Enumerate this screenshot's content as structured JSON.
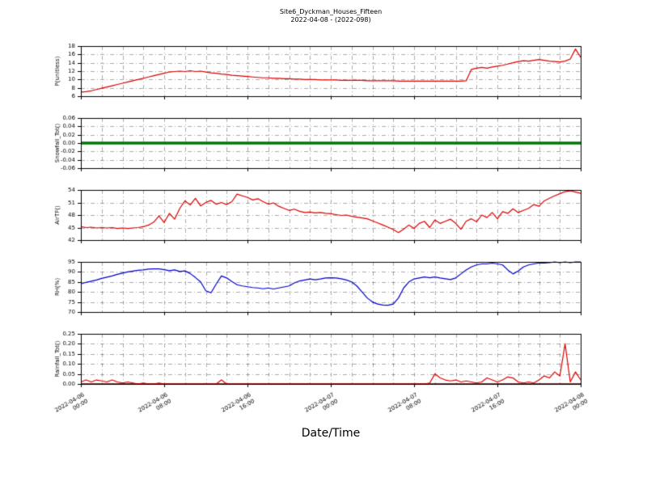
{
  "title": {
    "line1": "Site6_Dyckman_Houses_Fifteen",
    "line2": "2022-04-08 - (2022-098)"
  },
  "xlabel": "Date/Time",
  "chart_data": {
    "type": "line",
    "x_unit": "hours since 2022-04-06 00:00",
    "xlim": [
      0,
      48
    ],
    "x_minor_step": 2,
    "x_major_ticks": [
      0,
      8,
      16,
      24,
      32,
      40,
      48
    ],
    "x_tick_labels": [
      [
        "2022-04-06",
        "00:00"
      ],
      [
        "2022-04-06",
        "08:00"
      ],
      [
        "2022-04-06",
        "16:00"
      ],
      [
        "2022-04-07",
        "00:00"
      ],
      [
        "2022-04-07",
        "08:00"
      ],
      [
        "2022-04-07",
        "16:00"
      ],
      [
        "2022-04-08",
        "00:00"
      ]
    ],
    "grid": true,
    "panels": [
      {
        "ylabel": "P(unitless)",
        "ylim": [
          6,
          18
        ],
        "yticks": [
          6,
          8,
          10,
          12,
          14,
          16,
          18
        ],
        "ytick_decimals": 0,
        "series": [
          {
            "name": "P",
            "color": "#dd0000",
            "lw": 1.2,
            "x_start": 0,
            "x_step": 0.5,
            "values": [
              7.0,
              7.1,
              7.3,
              7.6,
              7.9,
              8.2,
              8.5,
              8.8,
              9.1,
              9.4,
              9.7,
              10.0,
              10.3,
              10.6,
              10.9,
              11.2,
              11.5,
              11.8,
              11.9,
              12.0,
              11.9,
              12.1,
              11.9,
              12.0,
              11.8,
              11.6,
              11.5,
              11.3,
              11.2,
              11.0,
              10.9,
              10.8,
              10.7,
              10.6,
              10.5,
              10.4,
              10.4,
              10.3,
              10.3,
              10.2,
              10.2,
              10.1,
              10.1,
              10.0,
              10.0,
              10.0,
              9.9,
              9.9,
              9.9,
              9.9,
              9.8,
              9.8,
              9.8,
              9.8,
              9.8,
              9.7,
              9.7,
              9.7,
              9.7,
              9.7,
              9.7,
              9.6,
              9.6,
              9.6,
              9.6,
              9.6,
              9.6,
              9.6,
              9.6,
              9.6,
              9.6,
              9.6,
              9.6,
              9.6,
              9.7,
              12.4,
              12.7,
              12.9,
              12.7,
              13.0,
              13.2,
              13.4,
              13.7,
              14.0,
              14.3,
              14.5,
              14.4,
              14.6,
              14.8,
              14.6,
              14.4,
              14.3,
              14.2,
              14.4,
              14.9,
              17.3,
              15.3
            ]
          }
        ]
      },
      {
        "ylabel": "Snowfall_Tot()",
        "ylim": [
          -0.06,
          0.06
        ],
        "yticks": [
          -0.06,
          -0.04,
          -0.02,
          0.0,
          0.02,
          0.04,
          0.06
        ],
        "ytick_decimals": 2,
        "series": [
          {
            "name": "Snowfall_Tot",
            "color": "#007700",
            "lw": 3.5,
            "x_start": 0,
            "x_step": 48,
            "values": [
              0.0,
              0.0
            ]
          }
        ]
      },
      {
        "ylabel": "AirTF()",
        "ylim": [
          42,
          54
        ],
        "yticks": [
          42,
          45,
          48,
          51,
          54
        ],
        "ytick_decimals": 0,
        "series": [
          {
            "name": "AirTF",
            "color": "#dd0000",
            "lw": 1.2,
            "x_start": 0,
            "x_step": 0.5,
            "values": [
              45.2,
              45.0,
              45.1,
              44.9,
              45.0,
              44.9,
              45.0,
              44.8,
              44.9,
              44.8,
              44.9,
              45.0,
              45.2,
              45.6,
              46.3,
              47.8,
              46.2,
              48.4,
              47.0,
              49.6,
              51.4,
              50.4,
              52.0,
              50.2,
              51.0,
              51.5,
              50.6,
              51.0,
              50.5,
              51.2,
              53.0,
              52.6,
              52.2,
              51.6,
              51.9,
              51.2,
              50.6,
              50.9,
              50.1,
              49.6,
              49.1,
              49.4,
              48.9,
              48.6,
              48.7,
              48.5,
              48.6,
              48.4,
              48.3,
              48.1,
              47.9,
              48.0,
              47.7,
              47.5,
              47.3,
              47.1,
              46.6,
              46.1,
              45.6,
              45.1,
              44.5,
              43.8,
              44.6,
              45.6,
              44.8,
              46.0,
              46.5,
              45.0,
              46.8,
              46.0,
              46.5,
              47.0,
              46.0,
              44.6,
              46.5,
              47.1,
              46.4,
              48.0,
              47.4,
              48.6,
              47.1,
              48.8,
              48.4,
              49.5,
              48.6,
              49.1,
              49.6,
              50.5,
              50.1,
              51.4,
              52.0,
              52.6,
              53.1,
              53.6,
              53.8,
              53.5,
              53.2
            ]
          }
        ]
      },
      {
        "ylabel": "RH(%)",
        "ylim": [
          70,
          95
        ],
        "yticks": [
          70,
          75,
          80,
          85,
          90,
          95
        ],
        "ytick_decimals": 0,
        "series": [
          {
            "name": "RH",
            "color": "#0000cc",
            "lw": 1.2,
            "x_start": 0,
            "x_step": 0.5,
            "values": [
              84.0,
              84.8,
              85.4,
              86.0,
              86.8,
              87.4,
              88.0,
              88.8,
              89.4,
              90.0,
              90.4,
              90.8,
              91.0,
              91.4,
              91.5,
              91.5,
              91.1,
              90.6,
              91.0,
              90.2,
              90.5,
              89.2,
              87.2,
              85.0,
              80.6,
              79.6,
              84.0,
              88.0,
              87.0,
              85.2,
              83.6,
              83.0,
              82.6,
              82.2,
              82.0,
              81.6,
              82.0,
              81.5,
              82.0,
              82.5,
              83.0,
              84.5,
              85.5,
              86.0,
              86.5,
              86.1,
              86.5,
              87.0,
              87.1,
              87.0,
              86.6,
              86.0,
              85.0,
              83.0,
              80.0,
              77.0,
              75.0,
              74.0,
              73.5,
              73.4,
              74.0,
              77.0,
              82.0,
              85.0,
              86.5,
              87.0,
              87.5,
              87.1,
              87.5,
              87.0,
              86.6,
              86.2,
              87.0,
              89.0,
              91.0,
              92.5,
              93.5,
              94.0,
              94.0,
              94.4,
              94.0,
              93.5,
              91.0,
              89.0,
              90.5,
              92.5,
              93.5,
              94.0,
              94.5,
              94.4,
              94.6,
              95.0,
              94.6,
              95.0,
              94.6,
              95.0,
              95.0
            ]
          }
        ]
      },
      {
        "ylabel": "Rainfall_Tot()",
        "ylim": [
          0,
          0.25
        ],
        "yticks": [
          0.0,
          0.05,
          0.1,
          0.15,
          0.2,
          0.25
        ],
        "ytick_decimals": 2,
        "series": [
          {
            "name": "baseline-zero",
            "color": "#3a0000",
            "lw": 1.5,
            "x_start": 0,
            "x_step": 48,
            "values": [
              0.0,
              0.0
            ]
          },
          {
            "name": "Rainfall_Tot",
            "color": "#dd0000",
            "lw": 1.2,
            "x_start": 0,
            "x_step": 0.5,
            "values": [
              0.01,
              0.02,
              0.01,
              0.02,
              0.015,
              0.01,
              0.02,
              0.01,
              0.005,
              0.01,
              0.005,
              0.0,
              0.005,
              0.0,
              0.0,
              0.005,
              0.0,
              0.0,
              0.0,
              0.0,
              0.0,
              0.0,
              0.0,
              0.0,
              0.0,
              0.0,
              0.0,
              0.02,
              0.0,
              0.0,
              0.0,
              0.0,
              0.0,
              0.0,
              0.0,
              0.0,
              0.0,
              0.0,
              0.0,
              0.0,
              0.0,
              0.0,
              0.0,
              0.0,
              0.0,
              0.0,
              0.0,
              0.0,
              0.0,
              0.0,
              0.0,
              0.0,
              0.0,
              0.0,
              0.0,
              0.0,
              0.0,
              0.0,
              0.0,
              0.0,
              0.0,
              0.0,
              0.0,
              0.0,
              0.0,
              0.0,
              0.0,
              0.005,
              0.05,
              0.03,
              0.02,
              0.015,
              0.02,
              0.01,
              0.015,
              0.01,
              0.005,
              0.01,
              0.03,
              0.02,
              0.01,
              0.02,
              0.035,
              0.03,
              0.01,
              0.005,
              0.01,
              0.005,
              0.02,
              0.04,
              0.03,
              0.06,
              0.04,
              0.2,
              0.01,
              0.06,
              0.02
            ]
          }
        ]
      }
    ]
  }
}
